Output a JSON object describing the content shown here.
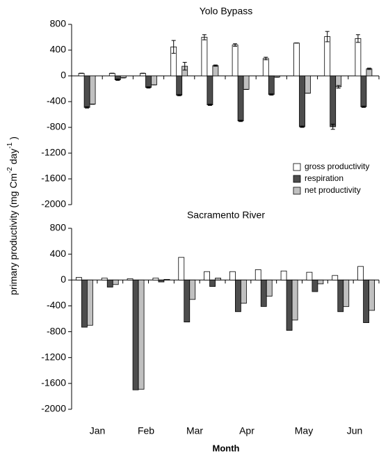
{
  "chart_data": [
    {
      "type": "bar",
      "title": "Yolo Bypass",
      "categories": [
        null,
        null,
        null,
        null,
        null,
        null,
        null,
        null,
        null,
        null
      ],
      "series": [
        {
          "name": "gross productivity",
          "color": "#ffffff",
          "values": [
            40,
            40,
            40,
            450,
            600,
            480,
            270,
            510,
            610,
            580
          ],
          "errors": [
            0,
            0,
            0,
            100,
            40,
            20,
            20,
            0,
            80,
            60
          ]
        },
        {
          "name": "respiration",
          "color": "#4d4d4d",
          "values": [
            -490,
            -60,
            -180,
            -300,
            -450,
            -700,
            -290,
            -790,
            -790,
            -480
          ],
          "errors": [
            10,
            10,
            10,
            10,
            10,
            10,
            10,
            10,
            40,
            10
          ]
        },
        {
          "name": "net productivity",
          "color": "#c0c0c0",
          "values": [
            -440,
            -30,
            -140,
            150,
            160,
            -210,
            -20,
            -270,
            -170,
            110
          ],
          "errors": [
            0,
            0,
            0,
            60,
            10,
            0,
            0,
            0,
            20,
            10
          ]
        }
      ],
      "ylim": [
        -2000,
        800
      ],
      "yticks": [
        -2000,
        -1600,
        -1200,
        -800,
        -400,
        0,
        400,
        800
      ],
      "legend": "lower right"
    },
    {
      "type": "bar",
      "title": "Sacramento River",
      "categories": [
        null,
        null,
        null,
        null,
        null,
        null,
        null,
        null,
        null,
        null,
        null,
        null
      ],
      "series": [
        {
          "name": "gross productivity",
          "color": "#ffffff",
          "values": [
            40,
            30,
            20,
            30,
            350,
            130,
            130,
            160,
            140,
            120,
            70,
            210
          ]
        },
        {
          "name": "respiration",
          "color": "#4d4d4d",
          "values": [
            -730,
            -110,
            -1700,
            -30,
            -650,
            -100,
            -490,
            -410,
            -780,
            -180,
            -490,
            -660
          ]
        },
        {
          "name": "net productivity",
          "color": "#c0c0c0",
          "values": [
            -700,
            -70,
            -1690,
            10,
            -300,
            30,
            -360,
            -250,
            -620,
            -60,
            -410,
            -470
          ]
        }
      ],
      "ylim": [
        -2000,
        800
      ],
      "yticks": [
        -2000,
        -1600,
        -1200,
        -800,
        -400,
        0,
        400,
        800
      ]
    }
  ],
  "months": [
    "Jan",
    "Feb",
    "Mar",
    "Apr",
    "May",
    "Jun"
  ],
  "x_label": "Month",
  "y_label": [
    "primary productivity (mg Cm",
    "-2",
    " day",
    "-1",
    " )"
  ]
}
